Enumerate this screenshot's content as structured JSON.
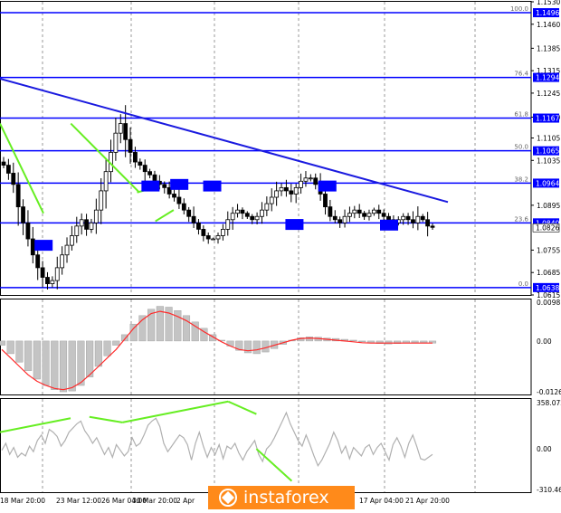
{
  "watermark": {
    "brand": "instaforex"
  },
  "colors": {
    "background": "#ffffff",
    "grid": "#9a9a9a",
    "candles": "#000000",
    "fib_lines": "#0000ff",
    "trend_line": "#1a1adf",
    "annotation_green": "#66ee22",
    "signal_line": "#ff2a2a",
    "osc_line": "#b0b0b0",
    "label_bg": "#0000ff",
    "label_fg": "#ffffff",
    "watermark_bg": "#ff8a1a"
  },
  "chart_data": [
    {
      "type": "candlestick",
      "panel": "price",
      "y_ticks": [
        "1.1530",
        "1.1460",
        "1.1385",
        "1.1315",
        "1.1245",
        "1.1170",
        "1.1105",
        "1.1035",
        "1.0895",
        "1.0755",
        "1.0685",
        "1.0615"
      ],
      "ylim": [
        1.0615,
        1.153
      ],
      "fib_levels": [
        {
          "pct": "100.0",
          "price": "1.1496",
          "value": 1.1496
        },
        {
          "pct": "76.4",
          "price": "1.1294",
          "value": 1.1294
        },
        {
          "pct": "61.8",
          "price": "1.1167",
          "value": 1.1167
        },
        {
          "pct": "50.0",
          "price": "1.1065",
          "value": 1.1065
        },
        {
          "pct": "38.2",
          "price": "1.0964",
          "value": 1.0964
        },
        {
          "pct": "23.6",
          "price": "1.0840",
          "value": 1.084
        },
        {
          "pct": "0.0",
          "price": "1.0638",
          "value": 1.0638
        }
      ],
      "current_price": {
        "label": "1.0826",
        "value": 1.0826
      },
      "trend_line": [
        {
          "x": 0,
          "y": 1.129
        },
        {
          "x": 100,
          "y": 1.0905
        }
      ],
      "price_path": [
        1.102,
        1.0995,
        1.096,
        1.089,
        1.084,
        1.079,
        1.074,
        1.07,
        1.067,
        1.065,
        1.066,
        1.07,
        1.074,
        1.077,
        1.08,
        1.083,
        1.085,
        1.082,
        1.084,
        1.088,
        1.094,
        1.1,
        1.106,
        1.112,
        1.115,
        1.11,
        1.106,
        1.103,
        1.102,
        1.1,
        1.099,
        1.097,
        1.096,
        1.095,
        1.093,
        1.092,
        1.09,
        1.088,
        1.086,
        1.084,
        1.082,
        1.08,
        1.079,
        1.079,
        1.08,
        1.082,
        1.085,
        1.087,
        1.088,
        1.087,
        1.086,
        1.085,
        1.086,
        1.088,
        1.09,
        1.092,
        1.094,
        1.095,
        1.094,
        1.093,
        1.095,
        1.097,
        1.098,
        1.098,
        1.096,
        1.093,
        1.089,
        1.086,
        1.085,
        1.084,
        1.086,
        1.087,
        1.088,
        1.087,
        1.086,
        1.087,
        1.088,
        1.087,
        1.086,
        1.085,
        1.084,
        1.085,
        1.086,
        1.085,
        1.084,
        1.086,
        1.085,
        1.083,
        1.0826
      ],
      "level_boxes": [
        {
          "x": 2,
          "y": 1.077
        },
        {
          "x": 15,
          "y": 1.0955
        },
        {
          "x": 18.5,
          "y": 1.096
        },
        {
          "x": 22.5,
          "y": 1.0955
        },
        {
          "x": 32.5,
          "y": 1.0835
        },
        {
          "x": 36.5,
          "y": 1.0955
        },
        {
          "x": 45.5,
          "y": 1.0833
        }
      ],
      "green_lines": [
        [
          {
            "x": 0,
            "y": 1.115
          },
          {
            "x": 9.5,
            "y": 1.087
          }
        ],
        [
          {
            "x": 15.5,
            "y": 1.115
          },
          {
            "x": 30.5,
            "y": 1.0935
          }
        ],
        [
          {
            "x": 30,
            "y": 1.0935
          },
          {
            "x": 35,
            "y": 1.0955
          }
        ],
        [
          {
            "x": 34,
            "y": 1.0845
          },
          {
            "x": 38,
            "y": 1.088
          }
        ]
      ]
    },
    {
      "type": "histogram",
      "panel": "macd",
      "y_ticks": [
        "0.00981",
        "0.00",
        "-0.01263"
      ],
      "ylim": [
        -0.01263,
        0.00981
      ],
      "bars": [
        -0.001,
        -0.003,
        -0.005,
        -0.007,
        -0.009,
        -0.0105,
        -0.0115,
        -0.012,
        -0.0118,
        -0.0105,
        -0.0085,
        -0.006,
        -0.0035,
        -0.001,
        0.0015,
        0.004,
        0.006,
        0.0075,
        0.0082,
        0.008,
        0.0072,
        0.006,
        0.0045,
        0.003,
        0.0015,
        0.0002,
        -0.0012,
        -0.0022,
        -0.0028,
        -0.003,
        -0.0026,
        -0.0018,
        -0.0008,
        0.0002,
        0.0008,
        0.001,
        0.0009,
        0.0007,
        0.0006,
        0.0004,
        0.0002,
        -0.0002,
        -0.0005,
        -0.0006,
        -0.0007,
        -0.0006,
        -0.0005,
        -0.0004,
        -0.0004,
        -0.0005
      ],
      "signal": [
        -0.002,
        -0.004,
        -0.006,
        -0.008,
        -0.0095,
        -0.0105,
        -0.0112,
        -0.0115,
        -0.011,
        -0.0098,
        -0.008,
        -0.006,
        -0.004,
        -0.002,
        0.0005,
        0.003,
        0.005,
        0.0065,
        0.007,
        0.0066,
        0.0058,
        0.0048,
        0.0035,
        0.0022,
        0.001,
        -0.0002,
        -0.0012,
        -0.002,
        -0.0023,
        -0.0021,
        -0.0016,
        -0.001,
        -0.0004,
        0.0002,
        0.0006,
        0.0007,
        0.0006,
        0.0004,
        0.0002,
        0.0,
        -0.0002,
        -0.0004,
        -0.0005,
        -0.0005,
        -0.0005,
        -0.0005,
        -0.0005,
        -0.0005,
        -0.0005,
        -0.0005
      ]
    },
    {
      "type": "line",
      "panel": "oscillator",
      "y_ticks": [
        "358.072",
        "0.00",
        "-310.462"
      ],
      "ylim": [
        -310.462,
        358.072
      ],
      "x_ticks": [
        "18 Mar 20:00",
        "23 Mar 12:00",
        "26 Mar 04:00",
        "30 Mar 20:00",
        "2 Apr",
        "17 Apr 04:00",
        "21 Apr 20:00"
      ],
      "values": [
        -10,
        40,
        -40,
        10,
        -60,
        -30,
        -50,
        20,
        -20,
        60,
        100,
        40,
        140,
        120,
        90,
        20,
        60,
        120,
        150,
        180,
        200,
        130,
        90,
        40,
        80,
        20,
        -40,
        10,
        -60,
        30,
        -10,
        -50,
        -20,
        80,
        20,
        40,
        100,
        170,
        200,
        220,
        160,
        40,
        -20,
        20,
        60,
        100,
        80,
        30,
        -80,
        40,
        120,
        20,
        -60,
        10,
        -40,
        30,
        -70,
        20,
        0,
        40,
        -30,
        -80,
        -20,
        20,
        60,
        -40,
        -90,
        0,
        30,
        80,
        140,
        200,
        260,
        180,
        120,
        60,
        20,
        100,
        30,
        -50,
        -120,
        -80,
        -20,
        40,
        120,
        60,
        -30,
        20,
        -70,
        10,
        -20,
        -50,
        10,
        30,
        -40,
        10,
        40,
        -20,
        -80,
        30,
        80,
        20,
        -60,
        40,
        100,
        20,
        -70,
        -80,
        -60,
        -40
      ],
      "green_lines": [
        [
          {
            "x": 0,
            "y": 120
          },
          {
            "x": 15,
            "y": 220
          }
        ],
        [
          {
            "x": 19,
            "y": 230
          },
          {
            "x": 26,
            "y": 190
          }
        ],
        [
          {
            "x": 26,
            "y": 190
          },
          {
            "x": 48.5,
            "y": 340
          }
        ],
        [
          {
            "x": 48.5,
            "y": 340
          },
          {
            "x": 54.5,
            "y": 250
          }
        ],
        [
          {
            "x": 54.5,
            "y": 0
          },
          {
            "x": 62,
            "y": -230
          }
        ]
      ]
    }
  ]
}
